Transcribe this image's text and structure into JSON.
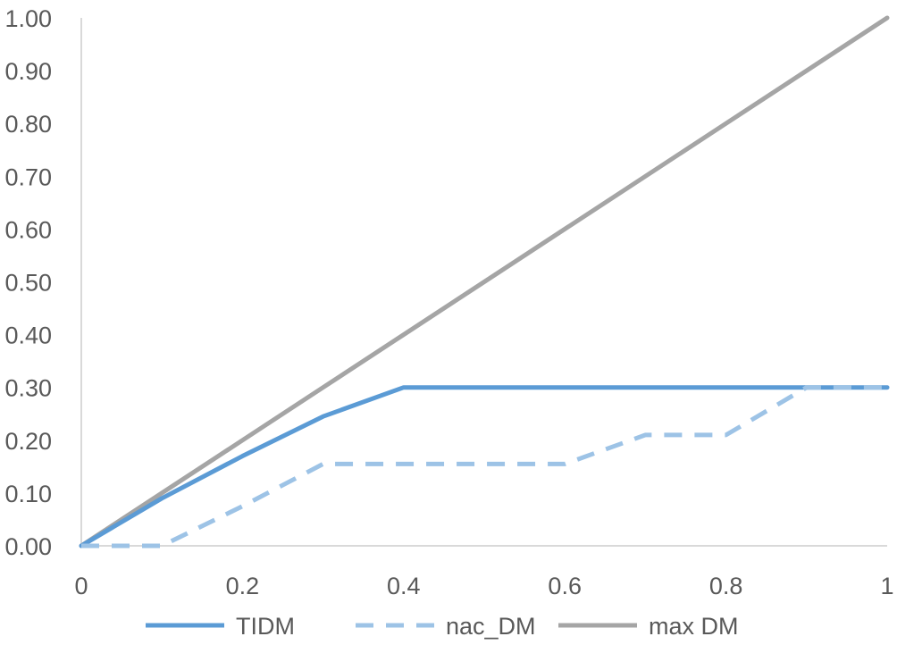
{
  "chart_data": {
    "type": "line",
    "title": "",
    "xlabel": "",
    "ylabel": "",
    "xlim": [
      0,
      1
    ],
    "ylim": [
      0,
      1
    ],
    "x_ticks": [
      0,
      0.2,
      0.4,
      0.6,
      0.8,
      1
    ],
    "x_tick_labels": [
      "0",
      "0.2",
      "0.4",
      "0.6",
      "0.8",
      "1"
    ],
    "y_ticks": [
      0,
      0.1,
      0.2,
      0.3,
      0.4,
      0.5,
      0.6,
      0.7,
      0.8,
      0.9,
      1.0
    ],
    "y_tick_labels": [
      "0.00",
      "0.10",
      "0.20",
      "0.30",
      "0.40",
      "0.50",
      "0.60",
      "0.70",
      "0.80",
      "0.90",
      "1.00"
    ],
    "grid": false,
    "legend_position": "bottom",
    "series": [
      {
        "name": "TIDM",
        "color": "#5b9bd5",
        "style": "solid",
        "points": [
          [
            0,
            0
          ],
          [
            0.1,
            0.09
          ],
          [
            0.2,
            0.17
          ],
          [
            0.3,
            0.245
          ],
          [
            0.4,
            0.3
          ],
          [
            0.5,
            0.3
          ],
          [
            0.6,
            0.3
          ],
          [
            0.7,
            0.3
          ],
          [
            0.8,
            0.3
          ],
          [
            0.9,
            0.3
          ],
          [
            1,
            0.3
          ]
        ]
      },
      {
        "name": "nac_DM",
        "color": "#9dc3e6",
        "style": "dashed",
        "points": [
          [
            0,
            0
          ],
          [
            0.1,
            0
          ],
          [
            0.2,
            0.075
          ],
          [
            0.3,
            0.155
          ],
          [
            0.4,
            0.155
          ],
          [
            0.5,
            0.155
          ],
          [
            0.6,
            0.155
          ],
          [
            0.7,
            0.21
          ],
          [
            0.8,
            0.21
          ],
          [
            0.9,
            0.3
          ],
          [
            1,
            0.3
          ]
        ]
      },
      {
        "name": "max DM",
        "color": "#a5a5a5",
        "style": "solid",
        "points": [
          [
            0,
            0
          ],
          [
            0.1,
            0.1
          ],
          [
            0.2,
            0.2
          ],
          [
            0.3,
            0.3
          ],
          [
            0.4,
            0.4
          ],
          [
            0.5,
            0.5
          ],
          [
            0.6,
            0.6
          ],
          [
            0.7,
            0.7
          ],
          [
            0.8,
            0.8
          ],
          [
            0.9,
            0.9
          ],
          [
            1,
            1.0
          ]
        ]
      }
    ]
  }
}
